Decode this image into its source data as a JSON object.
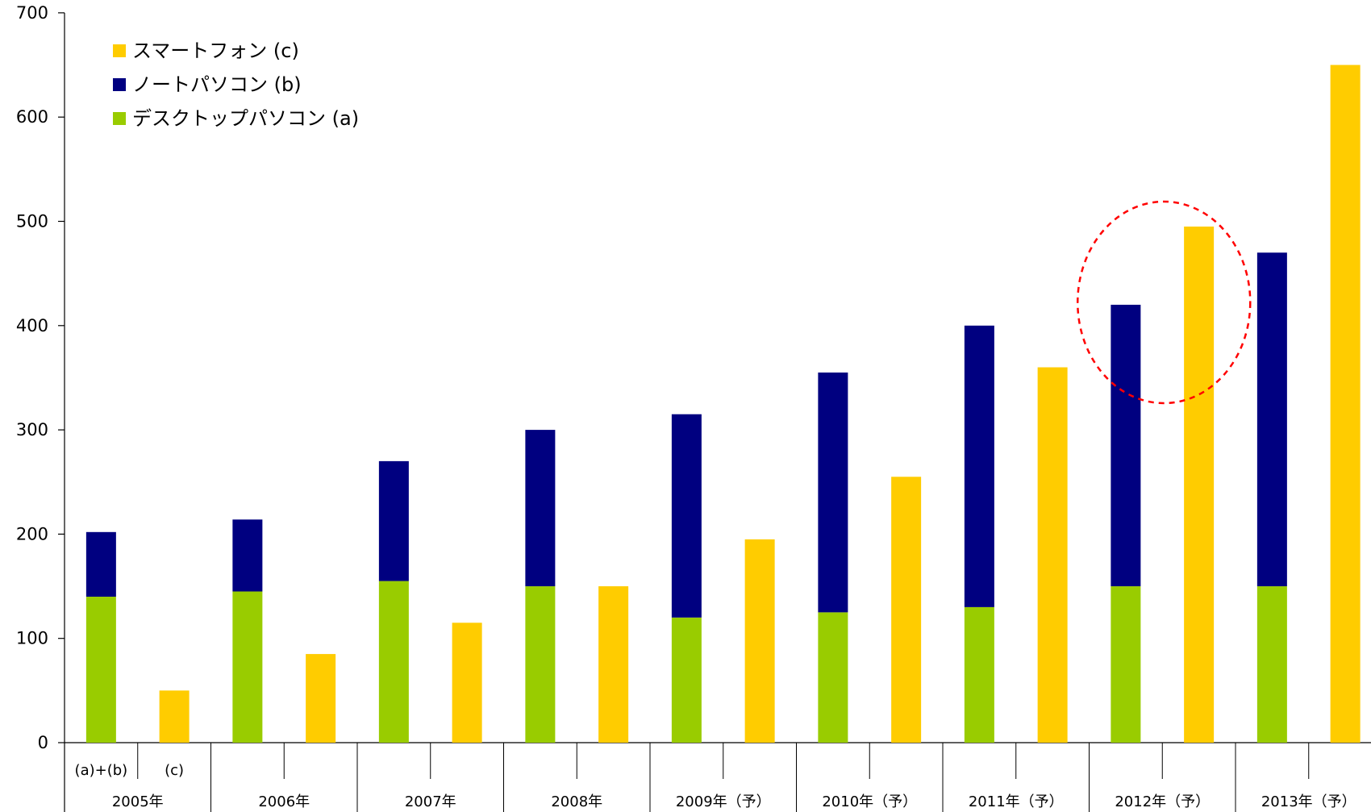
{
  "chart_data": {
    "type": "bar",
    "title": "",
    "xlabel": "",
    "ylabel": "",
    "ylim": [
      0,
      700
    ],
    "yticks": [
      0,
      100,
      200,
      300,
      400,
      500,
      600,
      700
    ],
    "grid": false,
    "legend_position": "top-left",
    "bar_sublabels": [
      "(a)+(b)",
      "(c)"
    ],
    "categories": [
      "2005年",
      "2006年",
      "2007年",
      "2008年",
      "2009年（予）",
      "2010年（予）",
      "2011年（予）",
      "2012年（予）",
      "2013年（予）"
    ],
    "legend": [
      {
        "name": "スマートフォン (c)",
        "color": "#ffcc00"
      },
      {
        "name": "ノートパソコン (b)",
        "color": "#000080"
      },
      {
        "name": "デスクトップパソコン (a)",
        "color": "#99cc00"
      }
    ],
    "series": [
      {
        "name": "デスクトップパソコン (a)",
        "stack": "pc",
        "color": "#99cc00",
        "values": [
          140,
          145,
          155,
          150,
          120,
          125,
          130,
          150,
          150
        ]
      },
      {
        "name": "ノートパソコン (b)",
        "stack": "pc",
        "color": "#000080",
        "values": [
          62,
          69,
          115,
          150,
          195,
          230,
          270,
          270,
          320
        ]
      },
      {
        "name": "スマートフォン (c)",
        "stack": "smartphone",
        "color": "#ffcc00",
        "values": [
          50,
          85,
          115,
          150,
          195,
          255,
          360,
          495,
          650
        ]
      }
    ],
    "annotations": [
      {
        "type": "dashed-circle",
        "color": "#ff0000",
        "target": "2012年（予）"
      }
    ]
  }
}
